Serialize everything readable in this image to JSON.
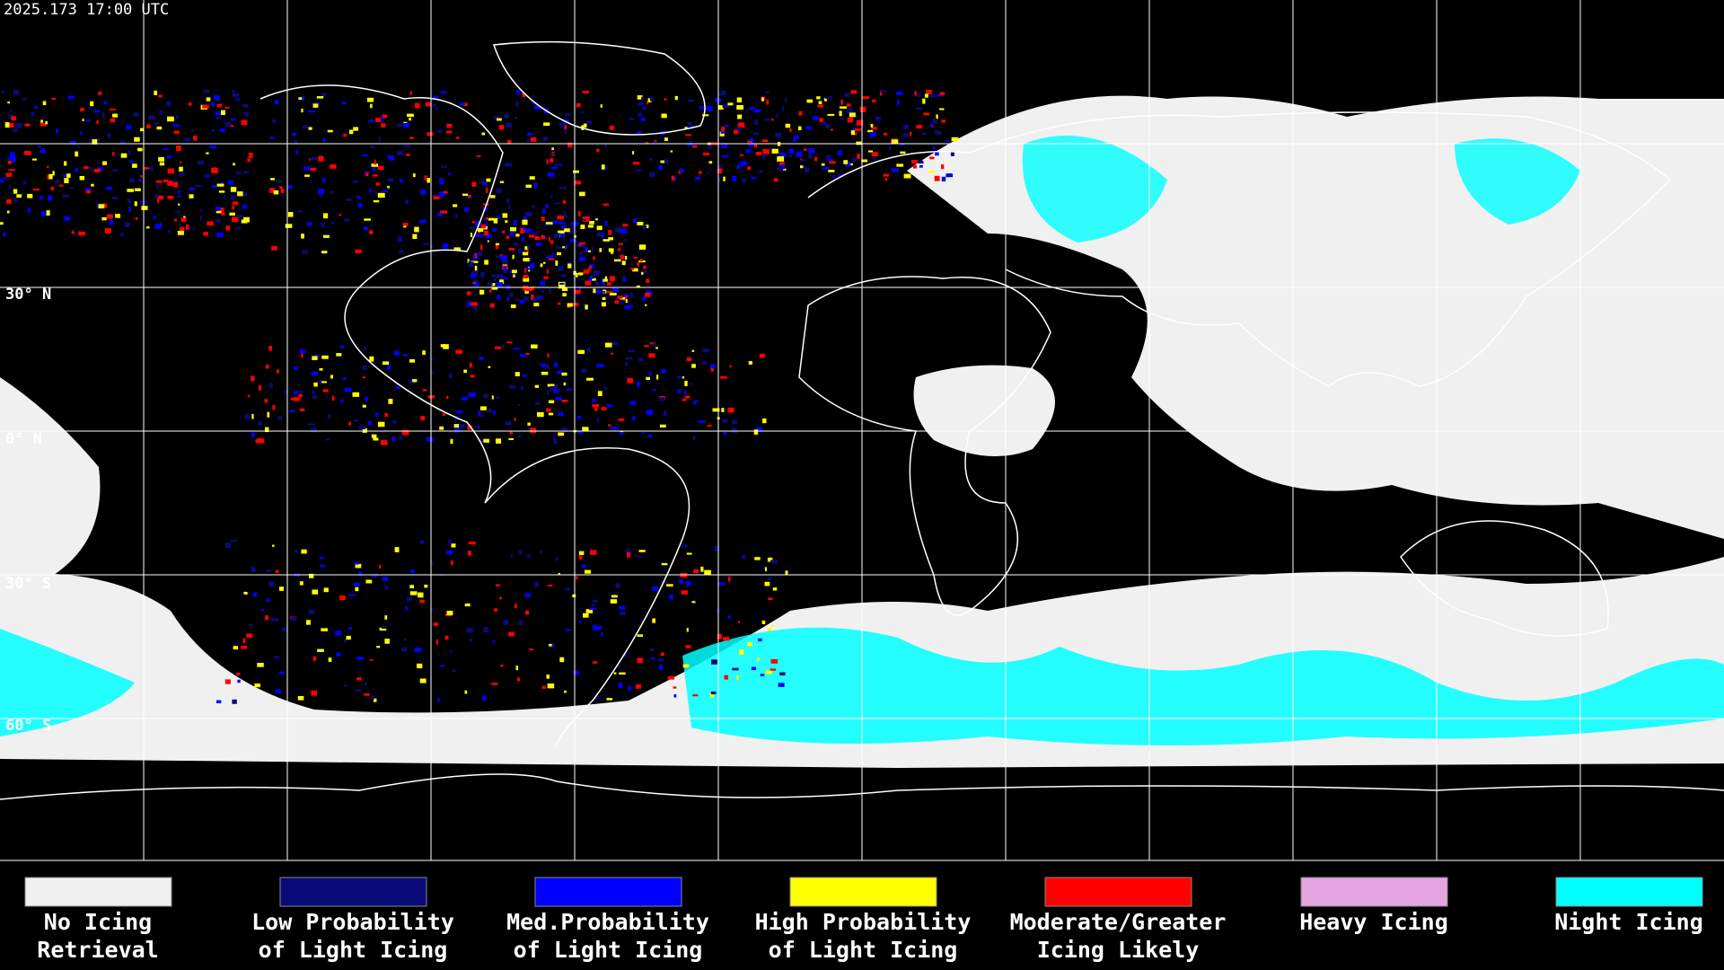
{
  "header": {
    "timestamp": "2025.173 17:00 UTC"
  },
  "map": {
    "latitude_labels": [
      "30° N",
      "0° N",
      "30° S",
      "60° S"
    ]
  },
  "legend": {
    "items": [
      {
        "lines": [
          "No Icing",
          "Retrieval"
        ],
        "color": "#f0f0f0"
      },
      {
        "lines": [
          "Low Probability",
          "of Light Icing"
        ],
        "color": "#0a0a78"
      },
      {
        "lines": [
          "Med.Probability",
          "of Light Icing"
        ],
        "color": "#0000ff"
      },
      {
        "lines": [
          "High Probability",
          "of Light Icing"
        ],
        "color": "#ffff00"
      },
      {
        "lines": [
          "Moderate/Greater",
          "Icing Likely"
        ],
        "color": "#ff0000"
      },
      {
        "lines": [
          "Heavy Icing"
        ],
        "color": "#e6a5e0"
      },
      {
        "lines": [
          "Night Icing"
        ],
        "color": "#00ffff"
      }
    ]
  }
}
